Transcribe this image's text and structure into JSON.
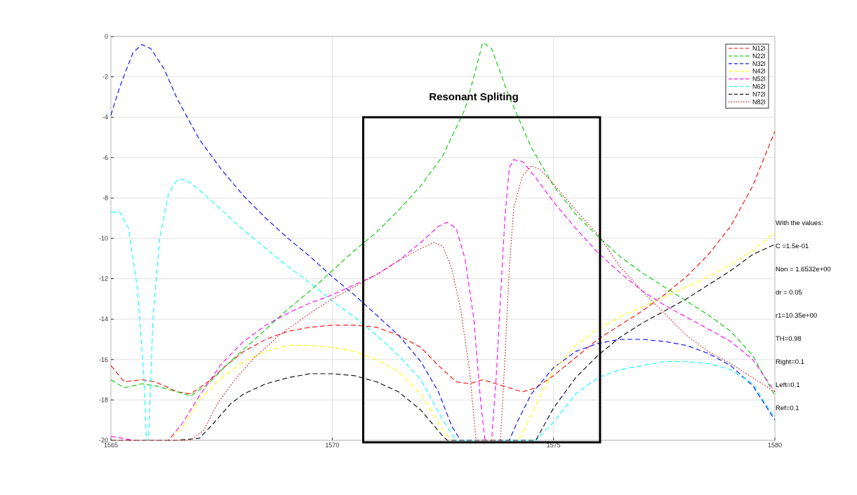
{
  "chart_data": {
    "type": "line",
    "title": "Resonant Spliting",
    "xlabel": "",
    "ylabel": "",
    "xlim": [
      1565,
      1580
    ],
    "ylim": [
      -20,
      0
    ],
    "xticks": [
      1565,
      1570,
      1575,
      1580
    ],
    "yticks": [
      0,
      -2,
      -4,
      -6,
      -8,
      -10,
      -12,
      -14,
      -16,
      -18,
      -20
    ],
    "grid": true,
    "legend_position": "top-right",
    "highlight_box": {
      "x": [
        1570.7,
        1576.05
      ],
      "y": [
        -4,
        -20.1
      ]
    },
    "series": [
      {
        "name": "N12l",
        "color": "#ff0000",
        "dash": "dashed",
        "points": [
          [
            1565,
            -16.3
          ],
          [
            1565.3,
            -17.1
          ],
          [
            1565.7,
            -17.0
          ],
          [
            1566,
            -17.1
          ],
          [
            1566.5,
            -17.6
          ],
          [
            1566.8,
            -17.7
          ],
          [
            1567.2,
            -17.1
          ],
          [
            1567.6,
            -16.3
          ],
          [
            1568,
            -15.6
          ],
          [
            1568.5,
            -15.0
          ],
          [
            1569,
            -14.6
          ],
          [
            1569.5,
            -14.4
          ],
          [
            1570,
            -14.3
          ],
          [
            1570.5,
            -14.3
          ],
          [
            1571,
            -14.4
          ],
          [
            1571.5,
            -14.8
          ],
          [
            1572,
            -15.4
          ],
          [
            1572.4,
            -16.3
          ],
          [
            1572.8,
            -17.1
          ],
          [
            1573.1,
            -17.2
          ],
          [
            1573.4,
            -17.0
          ],
          [
            1573.7,
            -17.2
          ],
          [
            1574,
            -17.4
          ],
          [
            1574.3,
            -17.6
          ],
          [
            1574.6,
            -17.4
          ],
          [
            1575,
            -16.8
          ],
          [
            1575.5,
            -15.9
          ],
          [
            1576,
            -15.0
          ],
          [
            1576.5,
            -14.3
          ],
          [
            1577,
            -13.6
          ],
          [
            1577.5,
            -12.8
          ],
          [
            1578,
            -11.9
          ],
          [
            1578.5,
            -10.8
          ],
          [
            1579,
            -9.4
          ],
          [
            1579.5,
            -7.4
          ],
          [
            1580,
            -4.7
          ]
        ]
      },
      {
        "name": "N22l",
        "color": "#00cc00",
        "dash": "dashed",
        "points": [
          [
            1565,
            -17.0
          ],
          [
            1565.3,
            -17.4
          ],
          [
            1565.7,
            -17.2
          ],
          [
            1566,
            -17.3
          ],
          [
            1566.5,
            -17.6
          ],
          [
            1566.8,
            -17.8
          ],
          [
            1567.2,
            -17.2
          ],
          [
            1567.6,
            -16.3
          ],
          [
            1568,
            -15.5
          ],
          [
            1568.5,
            -14.5
          ],
          [
            1569,
            -13.5
          ],
          [
            1569.5,
            -12.6
          ],
          [
            1570,
            -11.6
          ],
          [
            1570.5,
            -10.6
          ],
          [
            1571,
            -9.7
          ],
          [
            1571.5,
            -8.6
          ],
          [
            1572,
            -7.4
          ],
          [
            1572.5,
            -5.9
          ],
          [
            1573,
            -3.6
          ],
          [
            1573.2,
            -2.0
          ],
          [
            1573.4,
            -0.3
          ],
          [
            1573.6,
            -0.6
          ],
          [
            1573.8,
            -1.8
          ],
          [
            1574,
            -3.0
          ],
          [
            1574.5,
            -5.5
          ],
          [
            1575,
            -7.4
          ],
          [
            1575.5,
            -8.8
          ],
          [
            1576,
            -9.9
          ],
          [
            1576.5,
            -10.9
          ],
          [
            1577,
            -11.7
          ],
          [
            1577.5,
            -12.4
          ],
          [
            1578,
            -13.1
          ],
          [
            1578.5,
            -13.8
          ],
          [
            1579,
            -14.6
          ],
          [
            1579.5,
            -15.8
          ],
          [
            1580,
            -17.8
          ]
        ]
      },
      {
        "name": "N32l",
        "color": "#0000ff",
        "dash": "dashed",
        "points": [
          [
            1565,
            -3.9
          ],
          [
            1565.2,
            -2.5
          ],
          [
            1565.5,
            -0.8
          ],
          [
            1565.7,
            -0.4
          ],
          [
            1565.9,
            -0.6
          ],
          [
            1566.2,
            -1.6
          ],
          [
            1566.5,
            -3.1
          ],
          [
            1567,
            -5.1
          ],
          [
            1567.5,
            -6.6
          ],
          [
            1568,
            -7.9
          ],
          [
            1568.5,
            -9.0
          ],
          [
            1569,
            -10.0
          ],
          [
            1569.5,
            -10.9
          ],
          [
            1570,
            -11.9
          ],
          [
            1570.5,
            -12.8
          ],
          [
            1571,
            -13.8
          ],
          [
            1571.5,
            -14.8
          ],
          [
            1572,
            -16.1
          ],
          [
            1572.4,
            -17.6
          ],
          [
            1572.7,
            -19.3
          ],
          [
            1572.9,
            -20.0
          ],
          [
            1574,
            -20.0
          ],
          [
            1574.2,
            -19.0
          ],
          [
            1574.5,
            -17.7
          ],
          [
            1575,
            -16.4
          ],
          [
            1575.5,
            -15.6
          ],
          [
            1576,
            -15.2
          ],
          [
            1576.5,
            -15.0
          ],
          [
            1577,
            -15.0
          ],
          [
            1577.5,
            -15.1
          ],
          [
            1578,
            -15.3
          ],
          [
            1578.5,
            -15.7
          ],
          [
            1579,
            -16.3
          ],
          [
            1579.5,
            -17.3
          ],
          [
            1580,
            -19.0
          ]
        ]
      },
      {
        "name": "N42l",
        "color": "#ffff00",
        "dash": "dashed",
        "points": [
          [
            1565,
            -19.8
          ],
          [
            1565.5,
            -20.0
          ],
          [
            1566.3,
            -20.0
          ],
          [
            1566.6,
            -19.4
          ],
          [
            1567,
            -18.0
          ],
          [
            1567.5,
            -16.9
          ],
          [
            1568,
            -16.1
          ],
          [
            1568.5,
            -15.6
          ],
          [
            1569,
            -15.3
          ],
          [
            1569.5,
            -15.3
          ],
          [
            1570,
            -15.4
          ],
          [
            1570.5,
            -15.6
          ],
          [
            1571,
            -16.0
          ],
          [
            1571.5,
            -16.6
          ],
          [
            1572,
            -17.7
          ],
          [
            1572.5,
            -19.5
          ],
          [
            1572.7,
            -20.0
          ],
          [
            1574.2,
            -20.0
          ],
          [
            1574.4,
            -19.2
          ],
          [
            1574.7,
            -17.8
          ],
          [
            1575,
            -16.5
          ],
          [
            1575.5,
            -15.3
          ],
          [
            1576,
            -14.5
          ],
          [
            1576.5,
            -13.9
          ],
          [
            1577,
            -13.4
          ],
          [
            1577.5,
            -12.9
          ],
          [
            1578,
            -12.4
          ],
          [
            1578.5,
            -11.9
          ],
          [
            1579,
            -11.3
          ],
          [
            1579.5,
            -10.6
          ],
          [
            1580,
            -9.7
          ]
        ]
      },
      {
        "name": "N52l",
        "color": "#ff00ff",
        "dash": "dashed",
        "points": [
          [
            1565,
            -19.8
          ],
          [
            1565.5,
            -20.0
          ],
          [
            1566.3,
            -20.0
          ],
          [
            1566.6,
            -19.2
          ],
          [
            1567,
            -17.8
          ],
          [
            1567.5,
            -16.2
          ],
          [
            1568,
            -15.1
          ],
          [
            1568.5,
            -14.3
          ],
          [
            1569,
            -13.7
          ],
          [
            1569.5,
            -13.2
          ],
          [
            1570,
            -12.8
          ],
          [
            1570.5,
            -12.3
          ],
          [
            1571,
            -11.8
          ],
          [
            1571.5,
            -11.1
          ],
          [
            1572,
            -10.2
          ],
          [
            1572.4,
            -9.4
          ],
          [
            1572.6,
            -9.2
          ],
          [
            1572.8,
            -9.5
          ],
          [
            1573,
            -11.0
          ],
          [
            1573.2,
            -14.0
          ],
          [
            1573.35,
            -18.0
          ],
          [
            1573.45,
            -20.0
          ],
          [
            1573.6,
            -20.0
          ],
          [
            1573.7,
            -17.0
          ],
          [
            1573.8,
            -13.0
          ],
          [
            1573.9,
            -9.0
          ],
          [
            1574,
            -6.5
          ],
          [
            1574.1,
            -6.1
          ],
          [
            1574.3,
            -6.2
          ],
          [
            1574.6,
            -7.0
          ],
          [
            1575,
            -8.2
          ],
          [
            1575.5,
            -9.5
          ],
          [
            1576,
            -10.7
          ],
          [
            1576.5,
            -11.7
          ],
          [
            1577,
            -12.6
          ],
          [
            1577.5,
            -13.3
          ],
          [
            1578,
            -13.9
          ],
          [
            1578.5,
            -14.5
          ],
          [
            1579,
            -15.1
          ],
          [
            1579.5,
            -16.0
          ],
          [
            1580,
            -17.6
          ]
        ]
      },
      {
        "name": "N62l",
        "color": "#00ffff",
        "dash": "dashed",
        "points": [
          [
            1565,
            -8.7
          ],
          [
            1565.2,
            -8.7
          ],
          [
            1565.4,
            -9.5
          ],
          [
            1565.6,
            -12.5
          ],
          [
            1565.75,
            -17.0
          ],
          [
            1565.8,
            -20.0
          ],
          [
            1565.85,
            -20.0
          ],
          [
            1565.95,
            -14.0
          ],
          [
            1566.1,
            -10.0
          ],
          [
            1566.3,
            -7.8
          ],
          [
            1566.5,
            -7.1
          ],
          [
            1566.7,
            -7.1
          ],
          [
            1567,
            -7.6
          ],
          [
            1567.5,
            -8.6
          ],
          [
            1568,
            -9.6
          ],
          [
            1568.5,
            -10.5
          ],
          [
            1569,
            -11.4
          ],
          [
            1569.5,
            -12.2
          ],
          [
            1570,
            -13.1
          ],
          [
            1570.5,
            -13.9
          ],
          [
            1571,
            -14.8
          ],
          [
            1571.5,
            -15.8
          ],
          [
            1572,
            -17.0
          ],
          [
            1572.5,
            -19.0
          ],
          [
            1572.8,
            -20.0
          ],
          [
            1574.6,
            -20.0
          ],
          [
            1575,
            -19.1
          ],
          [
            1575.5,
            -17.7
          ],
          [
            1576,
            -16.9
          ],
          [
            1576.5,
            -16.5
          ],
          [
            1577,
            -16.3
          ],
          [
            1577.5,
            -16.1
          ],
          [
            1578,
            -16.1
          ],
          [
            1578.5,
            -16.2
          ],
          [
            1579,
            -16.5
          ],
          [
            1579.5,
            -17.2
          ],
          [
            1580,
            -18.9
          ]
        ]
      },
      {
        "name": "N72l",
        "color": "#000000",
        "dash": "dashed",
        "points": [
          [
            1565,
            -20.0
          ],
          [
            1566.5,
            -20.0
          ],
          [
            1567,
            -19.9
          ],
          [
            1567.3,
            -19.2
          ],
          [
            1567.7,
            -18.2
          ],
          [
            1568,
            -17.7
          ],
          [
            1568.5,
            -17.2
          ],
          [
            1569,
            -16.9
          ],
          [
            1569.5,
            -16.7
          ],
          [
            1570,
            -16.7
          ],
          [
            1570.5,
            -16.8
          ],
          [
            1571,
            -17.1
          ],
          [
            1571.5,
            -17.6
          ],
          [
            1572,
            -18.5
          ],
          [
            1572.5,
            -19.8
          ],
          [
            1572.6,
            -20.0
          ],
          [
            1574.6,
            -20.0
          ],
          [
            1575,
            -18.4
          ],
          [
            1575.5,
            -16.9
          ],
          [
            1576,
            -15.8
          ],
          [
            1576.5,
            -14.9
          ],
          [
            1577,
            -14.2
          ],
          [
            1577.5,
            -13.6
          ],
          [
            1578,
            -13.0
          ],
          [
            1578.5,
            -12.3
          ],
          [
            1579,
            -11.6
          ],
          [
            1579.5,
            -10.8
          ],
          [
            1580,
            -10.3
          ]
        ]
      },
      {
        "name": "N82l",
        "color": "#cc0000",
        "dash": "dotted",
        "points": [
          [
            1565,
            -20.0
          ],
          [
            1566.8,
            -20.0
          ],
          [
            1567.1,
            -19.5
          ],
          [
            1567.4,
            -18.2
          ],
          [
            1567.8,
            -17.0
          ],
          [
            1568.2,
            -16.0
          ],
          [
            1568.8,
            -14.8
          ],
          [
            1569.5,
            -13.7
          ],
          [
            1570,
            -13.0
          ],
          [
            1570.5,
            -12.4
          ],
          [
            1571,
            -11.8
          ],
          [
            1571.5,
            -11.1
          ],
          [
            1572,
            -10.5
          ],
          [
            1572.3,
            -10.2
          ],
          [
            1572.5,
            -10.4
          ],
          [
            1572.7,
            -11.5
          ],
          [
            1572.9,
            -13.5
          ],
          [
            1573.1,
            -16.5
          ],
          [
            1573.25,
            -20.0
          ],
          [
            1573.8,
            -20.0
          ],
          [
            1573.9,
            -16.0
          ],
          [
            1574,
            -11.5
          ],
          [
            1574.1,
            -8.5
          ],
          [
            1574.3,
            -6.9
          ],
          [
            1574.5,
            -6.4
          ],
          [
            1574.7,
            -6.6
          ],
          [
            1575,
            -7.3
          ],
          [
            1575.5,
            -8.6
          ],
          [
            1576,
            -9.8
          ],
          [
            1576.5,
            -11.4
          ],
          [
            1577,
            -12.6
          ],
          [
            1577.5,
            -13.7
          ],
          [
            1578,
            -14.8
          ],
          [
            1578.5,
            -15.6
          ],
          [
            1579,
            -16.2
          ],
          [
            1579.5,
            -16.9
          ],
          [
            1580,
            -17.6
          ]
        ]
      }
    ]
  },
  "note_lines": [
    "With the values:",
    "C =1.5e-01",
    "Non = 1.6532e+00",
    "dr = 0.05",
    "r1=10.35e+00",
    "TH=0.98",
    "Right=0.1",
    "Left=0.1",
    "Ref=0.1"
  ]
}
